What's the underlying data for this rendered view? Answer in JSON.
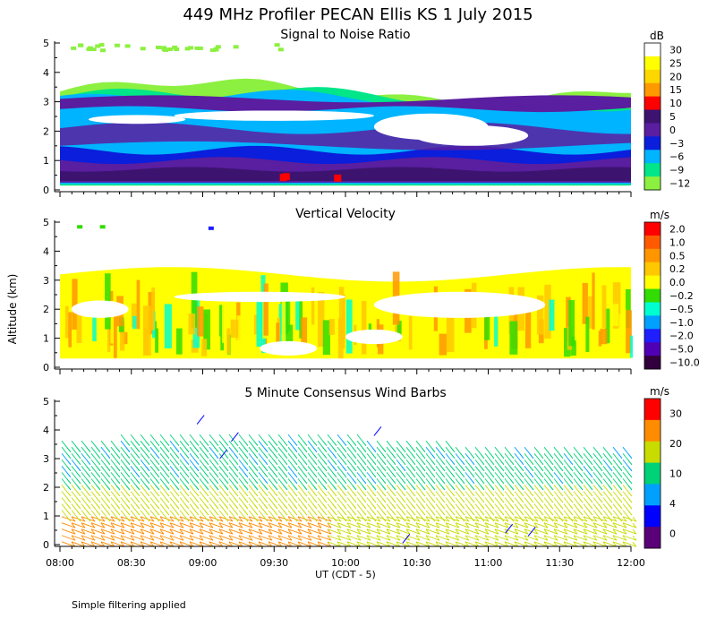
{
  "title": "449 MHz Profiler PECAN Ellis KS   1 July 2015",
  "ylabel": "Altitude (km)",
  "xlabel": "UT   (CDT - 5)",
  "footnote": "Simple filtering applied",
  "x_ticks": [
    "08:00",
    "08:30",
    "09:00",
    "09:30",
    "10:00",
    "10:30",
    "11:00",
    "11:30",
    "12:00"
  ],
  "y_ticks": [
    "0",
    "1",
    "2",
    "3",
    "4",
    "5"
  ],
  "chart_data": [
    {
      "type": "heatmap",
      "title": "Signal to Noise Ratio",
      "unit": "dB",
      "x_range": [
        "08:00",
        "12:00"
      ],
      "y_range_km": [
        0,
        5
      ],
      "colorbar_labels": [
        "30",
        "25",
        "20",
        "15",
        "10",
        "5",
        "0",
        "−3",
        "−6",
        "−9",
        "−12"
      ],
      "colors": [
        "#ffffff",
        "#ffff00",
        "#ffd700",
        "#ff9900",
        "#ff0000",
        "#3c1470",
        "#5a1ea0",
        "#0a1edc",
        "#00b4ff",
        "#00e688",
        "#8cf040"
      ],
      "layers": [
        {
          "name_desc": "low strong layer",
          "z0": 0.3,
          "z1": 1.1,
          "color_index": 5
        },
        {
          "name_desc": "middle layer",
          "z0": 1.3,
          "z1": 2.3,
          "color_index": 6
        },
        {
          "name_desc": "upper layer",
          "z0": 2.5,
          "z1": 3.3,
          "color_index": 6
        }
      ]
    },
    {
      "type": "heatmap",
      "title": "Vertical Velocity",
      "unit": "m/s",
      "x_range": [
        "08:00",
        "12:00"
      ],
      "y_range_km": [
        0,
        5
      ],
      "colorbar_labels": [
        "2.0",
        "1.0",
        "0.5",
        "0.2",
        "0.0",
        "−0.2",
        "−0.5",
        "−1.0",
        "−2.0",
        "−5.0",
        "−10.0"
      ],
      "colors": [
        "#ff0000",
        "#ff5a00",
        "#ff9600",
        "#ffc800",
        "#ffff00",
        "#32dc00",
        "#00ffd0",
        "#00a0ff",
        "#1e1eff",
        "#5000b4",
        "#32003c"
      ]
    },
    {
      "type": "barbs",
      "title": "5 Minute Consensus Wind Barbs",
      "unit": "m/s",
      "x_range": [
        "08:00",
        "12:00"
      ],
      "y_range_km": [
        0,
        5
      ],
      "colorbar_labels": [
        "30",
        "20",
        "10",
        "4",
        "0"
      ],
      "colors": [
        "#ff0000",
        "#ff8c00",
        "#c8dc00",
        "#00d278",
        "#00a0ff",
        "#0000ff",
        "#5a0078"
      ]
    }
  ]
}
